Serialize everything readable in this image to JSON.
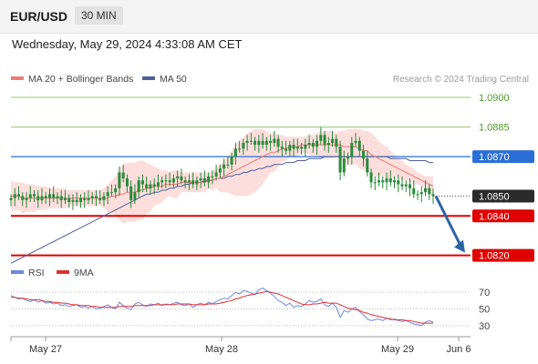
{
  "header": {
    "symbol": "EUR/USD",
    "timeframe": "30 MIN"
  },
  "timestamp": "Wednesday, May 29, 2024 4:33:08 AM CET",
  "watermark": "Research © 2024 Trading Central",
  "colors": {
    "candle": "#2a8a3a",
    "ma20": "#f07a72",
    "bands": "#fbd3d1",
    "ma50": "#50609c",
    "support": "#e00000",
    "resistance_green": "#8fc86a",
    "pivot_blue": "#2b6fd6",
    "current": "#2b2b2b",
    "arrow": "#2d64a6",
    "rsi": "#6f87e0",
    "rsi_ma": "#e03030"
  },
  "chart_data": [
    {
      "type": "candlestick",
      "legend": [
        {
          "name": "MA 20 + Bollinger Bands",
          "color": "#f07a72"
        },
        {
          "name": "MA 50",
          "color": "#50609c"
        }
      ],
      "ylim": [
        1.0818,
        1.0906
      ],
      "xticks": [
        "May 27",
        "May 28",
        "May 29",
        "Jun 6"
      ],
      "levels": [
        {
          "label": "1.0900",
          "value": 1.09,
          "kind": "resistance_green"
        },
        {
          "label": "1.0885",
          "value": 1.0885,
          "kind": "resistance_green"
        },
        {
          "label": "1.0870",
          "value": 1.087,
          "kind": "pivot_blue"
        },
        {
          "label": "1.0850",
          "value": 1.085,
          "kind": "current"
        },
        {
          "label": "1.0840",
          "value": 1.084,
          "kind": "support"
        },
        {
          "label": "1.0820",
          "value": 1.082,
          "kind": "support"
        }
      ],
      "close": [
        1.0849,
        1.0851,
        1.085,
        1.0848,
        1.0849,
        1.0851,
        1.085,
        1.0848,
        1.085,
        1.0849,
        1.0851,
        1.0849,
        1.085,
        1.0848,
        1.0849,
        1.0847,
        1.0848,
        1.0847,
        1.0849,
        1.0848,
        1.0849,
        1.085,
        1.0849,
        1.0848,
        1.085,
        1.0852,
        1.0852,
        1.0854,
        1.0862,
        1.0859,
        1.0855,
        1.0848,
        1.0852,
        1.0858,
        1.0856,
        1.0854,
        1.0856,
        1.0855,
        1.0857,
        1.0858,
        1.0858,
        1.0857,
        1.0859,
        1.086,
        1.0858,
        1.0857,
        1.0858,
        1.0856,
        1.0858,
        1.0859,
        1.0857,
        1.086,
        1.086,
        1.0862,
        1.0864,
        1.0866,
        1.0866,
        1.087,
        1.0874,
        1.0874,
        1.0877,
        1.0878,
        1.0878,
        1.0876,
        1.0878,
        1.0876,
        1.0878,
        1.0877,
        1.0879,
        1.0875,
        1.0874,
        1.0873,
        1.0876,
        1.0874,
        1.0875,
        1.0874,
        1.0876,
        1.0877,
        1.0875,
        1.0878,
        1.0881,
        1.0876,
        1.0877,
        1.0879,
        1.0875,
        1.0862,
        1.0869,
        1.087,
        1.0877,
        1.0878,
        1.0873,
        1.0869,
        1.0862,
        1.0857,
        1.0857,
        1.0858,
        1.0857,
        1.0859,
        1.0857,
        1.0858,
        1.0856,
        1.0855,
        1.0856,
        1.0854,
        1.0851,
        1.0851,
        1.0852,
        1.0854,
        1.0851,
        1.085
      ],
      "bb_upper": [
        1.0858,
        1.0857,
        1.0857,
        1.0857,
        1.0856,
        1.0856,
        1.0856,
        1.0855,
        1.0855,
        1.0855,
        1.0854,
        1.0854,
        1.0854,
        1.0854,
        1.0854,
        1.0853,
        1.0853,
        1.0853,
        1.0853,
        1.0853,
        1.0853,
        1.0853,
        1.0853,
        1.0853,
        1.0854,
        1.0856,
        1.0858,
        1.086,
        1.0864,
        1.0866,
        1.0867,
        1.0867,
        1.0867,
        1.0868,
        1.0868,
        1.0867,
        1.0866,
        1.0865,
        1.0864,
        1.0863,
        1.0863,
        1.0862,
        1.0863,
        1.0863,
        1.0862,
        1.0862,
        1.0862,
        1.0862,
        1.0862,
        1.0862,
        1.0862,
        1.0862,
        1.0863,
        1.0864,
        1.0866,
        1.0868,
        1.087,
        1.0873,
        1.0876,
        1.0878,
        1.088,
        1.0882,
        1.0883,
        1.0884,
        1.0884,
        1.0884,
        1.0883,
        1.0882,
        1.0882,
        1.0881,
        1.0881,
        1.088,
        1.088,
        1.088,
        1.088,
        1.088,
        1.088,
        1.0881,
        1.0881,
        1.0882,
        1.0883,
        1.0883,
        1.0883,
        1.0883,
        1.0882,
        1.0883,
        1.0883,
        1.0884,
        1.0884,
        1.0884,
        1.0884,
        1.0883,
        1.0883,
        1.0882,
        1.088,
        1.0878,
        1.0876,
        1.0875,
        1.0873,
        1.0871,
        1.0869,
        1.0868,
        1.0866,
        1.0865,
        1.0864,
        1.0862,
        1.0861,
        1.086,
        1.086,
        1.086
      ],
      "ma20": [
        1.085,
        1.085,
        1.085,
        1.0849,
        1.0849,
        1.0849,
        1.0849,
        1.0849,
        1.0849,
        1.0849,
        1.0849,
        1.0849,
        1.0849,
        1.0849,
        1.0849,
        1.0849,
        1.0849,
        1.0849,
        1.0849,
        1.0849,
        1.0849,
        1.0849,
        1.0849,
        1.0849,
        1.0849,
        1.0849,
        1.085,
        1.085,
        1.0851,
        1.0851,
        1.0852,
        1.0852,
        1.0852,
        1.0853,
        1.0853,
        1.0854,
        1.0854,
        1.0855,
        1.0855,
        1.0855,
        1.0856,
        1.0856,
        1.0856,
        1.0856,
        1.0857,
        1.0857,
        1.0857,
        1.0857,
        1.0857,
        1.0857,
        1.0857,
        1.0858,
        1.0858,
        1.0859,
        1.0859,
        1.086,
        1.0861,
        1.0862,
        1.0863,
        1.0864,
        1.0865,
        1.0866,
        1.0867,
        1.0868,
        1.0869,
        1.087,
        1.0871,
        1.0872,
        1.0872,
        1.0873,
        1.0874,
        1.0874,
        1.0875,
        1.0875,
        1.0875,
        1.0876,
        1.0876,
        1.0876,
        1.0876,
        1.0876,
        1.0876,
        1.0876,
        1.0876,
        1.0876,
        1.0876,
        1.0876,
        1.0875,
        1.0875,
        1.0875,
        1.0875,
        1.0874,
        1.0873,
        1.0873,
        1.0871,
        1.087,
        1.0869,
        1.0868,
        1.0867,
        1.0866,
        1.0865,
        1.0864,
        1.0863,
        1.0862,
        1.0861,
        1.086,
        1.0859,
        1.0858,
        1.0857,
        1.0856,
        1.0855
      ],
      "bb_lower": [
        1.0842,
        1.0843,
        1.0843,
        1.0841,
        1.0842,
        1.0842,
        1.0842,
        1.0843,
        1.0843,
        1.0843,
        1.0844,
        1.0844,
        1.0844,
        1.0844,
        1.0844,
        1.0845,
        1.0845,
        1.0845,
        1.0845,
        1.0845,
        1.0845,
        1.0845,
        1.0845,
        1.0845,
        1.0844,
        1.0842,
        1.0842,
        1.084,
        1.0838,
        1.0836,
        1.0837,
        1.0837,
        1.0837,
        1.0838,
        1.0838,
        1.0841,
        1.0842,
        1.0845,
        1.0846,
        1.0847,
        1.0849,
        1.085,
        1.0849,
        1.0849,
        1.0852,
        1.0852,
        1.0852,
        1.0852,
        1.0852,
        1.0852,
        1.0852,
        1.0854,
        1.0853,
        1.0854,
        1.0852,
        1.0852,
        1.0852,
        1.0851,
        1.085,
        1.085,
        1.085,
        1.085,
        1.0851,
        1.0852,
        1.0854,
        1.0856,
        1.0859,
        1.0862,
        1.0862,
        1.0865,
        1.0867,
        1.0868,
        1.087,
        1.087,
        1.087,
        1.0872,
        1.0872,
        1.0871,
        1.0871,
        1.087,
        1.0869,
        1.0869,
        1.0869,
        1.0869,
        1.087,
        1.0869,
        1.0867,
        1.0866,
        1.0866,
        1.0866,
        1.0864,
        1.0863,
        1.0863,
        1.086,
        1.086,
        1.086,
        1.086,
        1.0859,
        1.0859,
        1.0859,
        1.0859,
        1.0858,
        1.0858,
        1.0857,
        1.0856,
        1.0856,
        1.0855,
        1.0854,
        1.0852,
        1.085
      ],
      "ma50": [
        1.0816,
        1.0817,
        1.0818,
        1.0819,
        1.082,
        1.0821,
        1.0822,
        1.0823,
        1.0824,
        1.0825,
        1.0826,
        1.0827,
        1.0828,
        1.0829,
        1.083,
        1.0831,
        1.0832,
        1.0833,
        1.0834,
        1.0835,
        1.0836,
        1.0837,
        1.0838,
        1.0839,
        1.084,
        1.0841,
        1.0842,
        1.0843,
        1.0844,
        1.0845,
        1.0846,
        1.0847,
        1.0848,
        1.0849,
        1.085,
        1.0851,
        1.0851,
        1.0852,
        1.0852,
        1.0853,
        1.0853,
        1.0854,
        1.0854,
        1.0855,
        1.0855,
        1.0856,
        1.0856,
        1.0857,
        1.0857,
        1.0857,
        1.0858,
        1.0858,
        1.0858,
        1.0859,
        1.0859,
        1.0859,
        1.086,
        1.086,
        1.0861,
        1.0861,
        1.0862,
        1.0862,
        1.0863,
        1.0863,
        1.0864,
        1.0864,
        1.0865,
        1.0865,
        1.0866,
        1.0866,
        1.0866,
        1.0867,
        1.0867,
        1.0867,
        1.0868,
        1.0868,
        1.0868,
        1.0869,
        1.0869,
        1.0869,
        1.0869,
        1.087,
        1.087,
        1.087,
        1.087,
        1.087,
        1.087,
        1.087,
        1.087,
        1.087,
        1.087,
        1.087,
        1.087,
        1.087,
        1.087,
        1.087,
        1.087,
        1.087,
        1.0869,
        1.0869,
        1.0869,
        1.0869,
        1.0869,
        1.0868,
        1.0868,
        1.0868,
        1.0868,
        1.0868,
        1.0867,
        1.0867
      ],
      "forecast_arrow": {
        "from": 1.085,
        "to": 1.082
      }
    },
    {
      "type": "line",
      "legend": [
        {
          "name": "RSI",
          "color": "#6f87e0"
        },
        {
          "name": "9MA",
          "color": "#e03030"
        }
      ],
      "ylim": [
        20,
        80
      ],
      "yticks": [
        {
          "label": "70",
          "value": 70
        },
        {
          "label": "50",
          "value": 50
        },
        {
          "label": "30",
          "value": 30
        }
      ],
      "rsi": [
        66,
        64,
        62,
        63,
        60,
        59,
        61,
        58,
        60,
        57,
        58,
        56,
        57,
        54,
        55,
        53,
        54,
        55,
        52,
        53,
        51,
        53,
        50,
        51,
        53,
        55,
        52,
        50,
        58,
        54,
        51,
        49,
        56,
        58,
        55,
        53,
        56,
        55,
        57,
        54,
        56,
        55,
        57,
        58,
        55,
        54,
        56,
        52,
        55,
        57,
        55,
        58,
        56,
        59,
        61,
        63,
        62,
        66,
        70,
        68,
        72,
        71,
        69,
        67,
        73,
        75,
        72,
        69,
        65,
        60,
        58,
        54,
        57,
        52,
        54,
        53,
        56,
        60,
        58,
        59,
        62,
        55,
        53,
        57,
        52,
        40,
        48,
        46,
        50,
        52,
        47,
        43,
        38,
        36,
        37,
        38,
        36,
        39,
        37,
        38,
        36,
        35,
        36,
        34,
        32,
        31,
        30,
        34,
        36,
        34
      ],
      "ma9": [
        64,
        64,
        63,
        63,
        62,
        61,
        61,
        61,
        60,
        59,
        59,
        58,
        58,
        57,
        57,
        56,
        55,
        55,
        54,
        54,
        54,
        53,
        53,
        52,
        52,
        52,
        52,
        52,
        53,
        53,
        53,
        53,
        54,
        54,
        54,
        54,
        54,
        55,
        55,
        55,
        55,
        55,
        55,
        56,
        56,
        56,
        56,
        55,
        55,
        55,
        55,
        56,
        56,
        56,
        57,
        58,
        59,
        60,
        62,
        63,
        65,
        66,
        67,
        68,
        69,
        70,
        71,
        70,
        69,
        68,
        66,
        64,
        62,
        60,
        58,
        56,
        55,
        55,
        56,
        56,
        57,
        58,
        57,
        57,
        57,
        55,
        53,
        51,
        50,
        49,
        48,
        46,
        45,
        43,
        42,
        41,
        40,
        39,
        38,
        37,
        37,
        37,
        36,
        36,
        35,
        34,
        33,
        33,
        33,
        33
      ]
    }
  ]
}
